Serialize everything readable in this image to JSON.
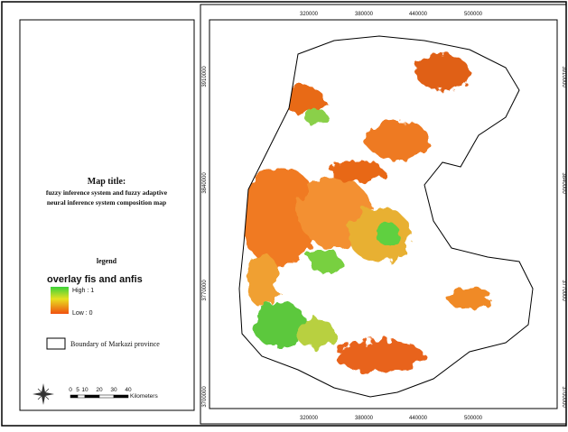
{
  "panel": {
    "map_title_heading": "Map title:",
    "map_title_lines": [
      "fuzzy inference system and fuzzy adaptive",
      "neural inference system composition map"
    ],
    "legend_heading": "legend",
    "layer_name": "overlay fis and anfis",
    "high_label": "High : 1",
    "low_label": "Low : 0",
    "boundary_label": "Boundary of Markazi province",
    "scale_ticks": [
      0,
      5,
      10,
      20,
      30,
      40
    ],
    "scale_unit": "Kilometers"
  },
  "map": {
    "x_coords": [
      320000,
      380000,
      440000,
      500000
    ],
    "y_coords": [
      3910000,
      3840000,
      3770000,
      3700000
    ]
  }
}
